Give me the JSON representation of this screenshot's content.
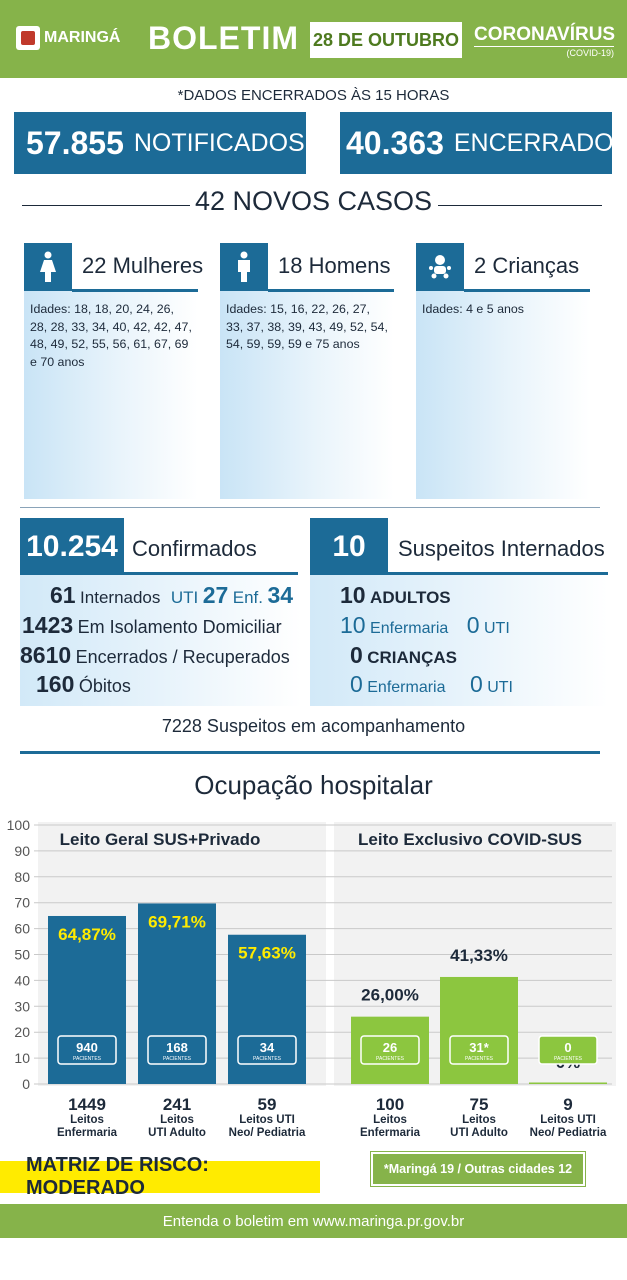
{
  "header": {
    "logo": "MARINGÁ",
    "title": "BOLETIM",
    "date": "28 DE OUTUBRO",
    "brand": "CORONAVÍRUS",
    "brand_sub": "(COVID-19)"
  },
  "closed_note": "*DADOS ENCERRADOS ÀS 15 HORAS",
  "totals": {
    "notified_num": "57.855",
    "notified_label": "NOTIFICADOS",
    "closed_num": "40.363",
    "closed_label": "ENCERRADOS"
  },
  "new_cases": "42 NOVOS CASOS",
  "groups": [
    {
      "icon": "woman-icon",
      "name": "22 Mulheres",
      "ages": "Idades: 18, 18, 20, 24, 26, 28, 28, 33, 34, 40, 42, 42, 47, 48, 49, 52, 55, 56, 61, 67, 69 e 70 anos"
    },
    {
      "icon": "man-icon",
      "name": "18 Homens",
      "ages": "Idades: 15, 16, 22, 26, 27, 33, 37, 38, 39, 43, 49, 52, 54, 54, 59, 59, 59 e 75 anos"
    },
    {
      "icon": "baby-icon",
      "name": "2 Crianças",
      "ages": "Idades: 4 e 5 anos"
    }
  ],
  "confirmed": {
    "num": "10.254",
    "label": "Confirmados",
    "hosp_num": "61",
    "hosp_label": "Internados",
    "uti_label": "UTI",
    "uti_num": "27",
    "enf_label": "Enf.",
    "enf_num": "34",
    "iso_num": "1423",
    "iso_label": "Em Isolamento Domiciliar",
    "rec_num": "8610",
    "rec_label": "Encerrados / Recuperados",
    "death_num": "160",
    "death_label": "Óbitos"
  },
  "suspects": {
    "num": "10",
    "label": "Suspeitos Internados",
    "adults_num": "10",
    "adults_label": "ADULTOS",
    "adult_enf_num": "10",
    "adult_enf_label": "Enfermaria",
    "adult_uti_num": "0",
    "adult_uti_label": "UTI",
    "kids_num": "0",
    "kids_label": "CRIANÇAS",
    "kid_enf_num": "0",
    "kid_enf_label": "Enfermaria",
    "kid_uti_num": "0",
    "kid_uti_label": "UTI"
  },
  "monitoring": "7228 Suspeitos em acompanhamento",
  "chart_title": "Ocupação hospitalar",
  "chart_data": {
    "type": "bar",
    "ylim": [
      0,
      100
    ],
    "yticks": [
      0,
      10,
      20,
      30,
      40,
      50,
      60,
      70,
      80,
      90,
      100
    ],
    "grid": true,
    "panels": [
      {
        "title": "Leito Geral SUS+Privado",
        "color": "#1c6b97",
        "bars": [
          {
            "value": 64.87,
            "label": "64,87%",
            "patients": "940",
            "beds": "1449",
            "cat1": "Leitos",
            "cat2": "Enfermaria"
          },
          {
            "value": 69.71,
            "label": "69,71%",
            "patients": "168",
            "beds": "241",
            "cat1": "Leitos",
            "cat2": "UTI Adulto"
          },
          {
            "value": 57.63,
            "label": "57,63%",
            "patients": "34",
            "beds": "59",
            "cat1": "Leitos UTI",
            "cat2": "Neo/ Pediatria"
          }
        ]
      },
      {
        "title": "Leito Exclusivo COVID-SUS",
        "color": "#8cc63f",
        "bars": [
          {
            "value": 26.0,
            "label": "26,00%",
            "patients": "26",
            "beds": "100",
            "cat1": "Leitos",
            "cat2": "Enfermaria"
          },
          {
            "value": 41.33,
            "label": "41,33%",
            "patients": "31*",
            "beds": "75",
            "cat1": "Leitos",
            "cat2": "UTI Adulto"
          },
          {
            "value": 0,
            "label": "0%",
            "patients": "0",
            "beds": "9",
            "cat1": "Leitos UTI",
            "cat2": "Neo/ Pediatria"
          }
        ]
      }
    ],
    "patients_label": "PACIENTES"
  },
  "risk": "MATRIZ DE RISCO: MODERADO",
  "cities_note": "*Maringá 19 / Outras cidades 12",
  "footer": "Entenda o boletim em www.maringa.pr.gov.br"
}
